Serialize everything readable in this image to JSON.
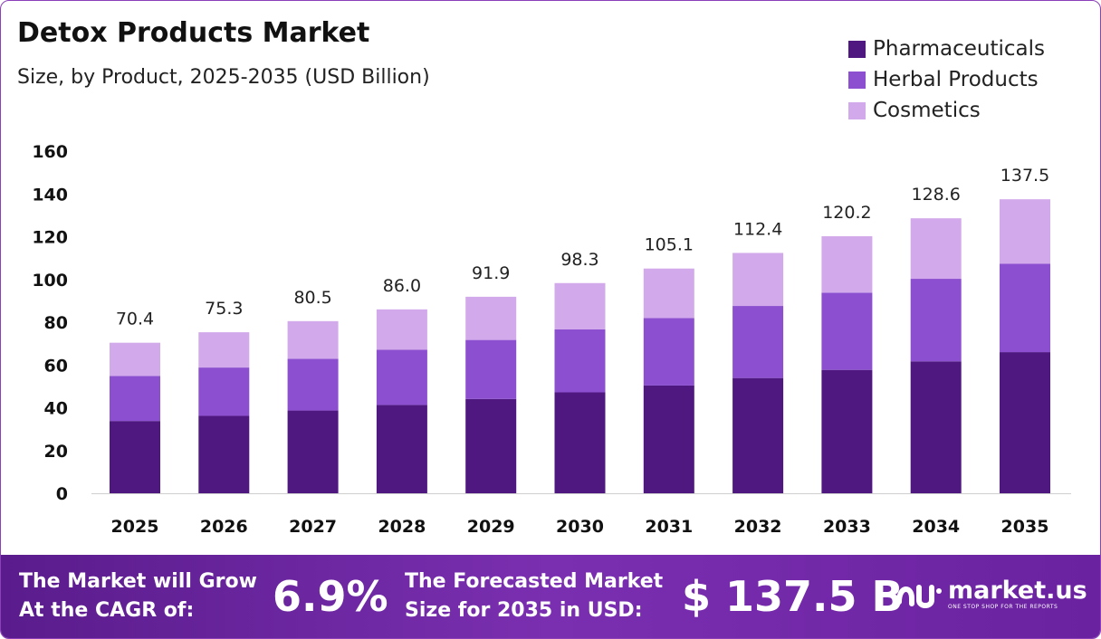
{
  "title": "Detox Products Market",
  "subtitle": "Size, by Product, 2025-2035 (USD Billion)",
  "colors": {
    "pharmaceuticals": "#4f1780",
    "herbal": "#8b4fcf",
    "cosmetics": "#d2a9ea",
    "footer": "#6a22a0"
  },
  "legend": [
    "Pharmaceuticals",
    "Herbal Products",
    "Cosmetics"
  ],
  "chart_data": {
    "type": "bar",
    "stacked": true,
    "categories": [
      "2025",
      "2026",
      "2027",
      "2028",
      "2029",
      "2030",
      "2031",
      "2032",
      "2033",
      "2034",
      "2035"
    ],
    "series": [
      {
        "name": "Pharmaceuticals",
        "values": [
          33.8,
          36.2,
          38.7,
          41.3,
          44.1,
          47.2,
          50.4,
          53.9,
          57.7,
          61.7,
          66.0
        ]
      },
      {
        "name": "Herbal Products",
        "values": [
          21.1,
          22.6,
          24.2,
          25.8,
          27.6,
          29.5,
          31.5,
          33.7,
          36.1,
          38.6,
          41.3
        ]
      },
      {
        "name": "Cosmetics",
        "values": [
          15.5,
          16.5,
          17.6,
          18.9,
          20.2,
          21.6,
          23.2,
          24.8,
          26.4,
          28.3,
          30.2
        ]
      }
    ],
    "totals": [
      "70.4",
      "75.3",
      "80.5",
      "86.0",
      "91.9",
      "98.3",
      "105.1",
      "112.4",
      "120.2",
      "128.6",
      "137.5"
    ],
    "ylim": [
      0,
      160
    ],
    "yticks": [
      "0",
      "20",
      "40",
      "60",
      "80",
      "100",
      "120",
      "140",
      "160"
    ],
    "grid": false,
    "legend_position": "top-right"
  },
  "footer": {
    "cagr_label_1": "The Market will Grow",
    "cagr_label_2": "At the CAGR of:",
    "cagr_value": "6.9%",
    "size_label_1": "The Forecasted Market",
    "size_label_2": "Size for 2035 in USD:",
    "size_value": "$ 137.5 B",
    "logo_name": "market.us",
    "logo_tagline": "ONE STOP SHOP FOR THE REPORTS"
  }
}
